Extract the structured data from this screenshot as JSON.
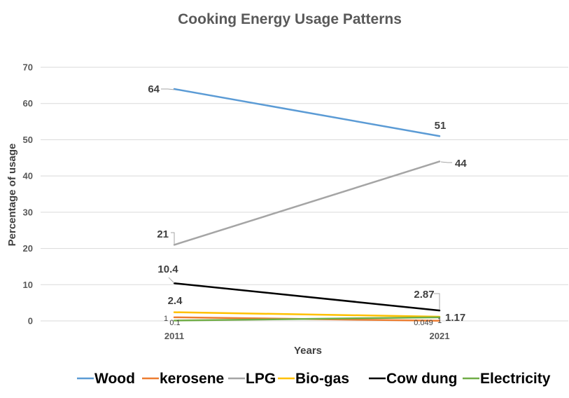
{
  "chart_data": {
    "type": "line",
    "title": "Cooking Energy Usage Patterns",
    "xlabel": "Years",
    "ylabel": "Percentage of usage",
    "categories": [
      "2011",
      "2021"
    ],
    "ylim": [
      0,
      70
    ],
    "yticks": [
      0,
      10,
      20,
      30,
      40,
      50,
      60,
      70
    ],
    "grid": true,
    "legend_position": "bottom",
    "series": [
      {
        "name": "Wood",
        "values": [
          64,
          51
        ],
        "labels": [
          "64",
          "51"
        ],
        "color": "#5B9BD5"
      },
      {
        "name": "kerosene",
        "values": [
          1,
          0.049
        ],
        "labels": [
          "1",
          "0.049"
        ],
        "color": "#ED7D31"
      },
      {
        "name": "LPG",
        "values": [
          21,
          44
        ],
        "labels": [
          "21",
          "44"
        ],
        "color": "#A5A5A5"
      },
      {
        "name": "Bio-gas",
        "values": [
          2.4,
          1.17
        ],
        "labels": [
          "2.4",
          "1.17"
        ],
        "color": "#FFC000"
      },
      {
        "name": "Cow dung",
        "values": [
          10.4,
          2.87
        ],
        "labels": [
          "10.4",
          "2.87"
        ],
        "color": "#000000"
      },
      {
        "name": "Electricity",
        "values": [
          0.1,
          1
        ],
        "labels": [
          "0.1",
          "1"
        ],
        "color": "#70AD47"
      }
    ]
  }
}
